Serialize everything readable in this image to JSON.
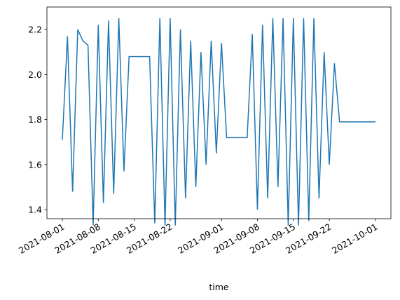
{
  "chart_data": {
    "type": "line",
    "xlabel": "time",
    "color": "#1f77b4",
    "x": [
      "2021-08-01",
      "2021-08-02",
      "2021-08-03",
      "2021-08-04",
      "2021-08-05",
      "2021-08-06",
      "2021-08-07",
      "2021-08-08",
      "2021-08-09",
      "2021-08-10",
      "2021-08-11",
      "2021-08-12",
      "2021-08-13",
      "2021-08-14",
      "2021-08-15",
      "2021-08-16",
      "2021-08-17",
      "2021-08-18",
      "2021-08-19",
      "2021-08-20",
      "2021-08-21",
      "2021-08-22",
      "2021-08-23",
      "2021-08-24",
      "2021-08-25",
      "2021-08-26",
      "2021-08-27",
      "2021-08-28",
      "2021-08-29",
      "2021-08-30",
      "2021-08-31",
      "2021-09-01",
      "2021-09-02",
      "2021-09-03",
      "2021-09-04",
      "2021-09-05",
      "2021-09-06",
      "2021-09-07",
      "2021-09-08",
      "2021-09-09",
      "2021-09-10",
      "2021-09-11",
      "2021-09-12",
      "2021-09-13",
      "2021-09-14",
      "2021-09-15",
      "2021-09-16",
      "2021-09-17",
      "2021-09-18",
      "2021-09-19",
      "2021-09-20",
      "2021-09-21",
      "2021-09-22",
      "2021-09-23",
      "2021-09-24",
      "2021-09-25",
      "2021-09-26",
      "2021-09-27",
      "2021-09-28",
      "2021-09-29",
      "2021-09-30",
      "2021-10-01"
    ],
    "values": [
      1.71,
      2.17,
      1.48,
      2.2,
      2.15,
      2.13,
      1.33,
      2.22,
      1.43,
      2.24,
      1.47,
      2.25,
      1.57,
      2.08,
      2.08,
      2.08,
      2.08,
      2.08,
      1.34,
      2.25,
      1.33,
      2.25,
      1.33,
      2.2,
      1.45,
      2.15,
      1.5,
      2.1,
      1.6,
      2.15,
      1.65,
      2.14,
      1.72,
      1.72,
      1.72,
      1.72,
      1.72,
      2.18,
      1.4,
      2.22,
      1.45,
      2.25,
      1.5,
      2.25,
      1.33,
      2.25,
      1.33,
      2.25,
      1.35,
      2.25,
      1.45,
      2.1,
      1.6,
      2.05,
      1.79,
      1.79,
      1.79,
      1.79,
      1.79,
      1.79,
      1.79,
      1.79
    ],
    "xlim": [
      "2021-07-29",
      "2021-10-04"
    ],
    "xticks": [
      "2021-08-01",
      "2021-08-08",
      "2021-08-15",
      "2021-08-22",
      "2021-09-01",
      "2021-09-08",
      "2021-09-15",
      "2021-09-22",
      "2021-10-01"
    ],
    "ylim": [
      1.36,
      2.3
    ],
    "yticks": [
      1.4,
      1.6,
      1.8,
      {
        "value": 2,
        "label": "2.0"
      },
      2.2
    ]
  }
}
